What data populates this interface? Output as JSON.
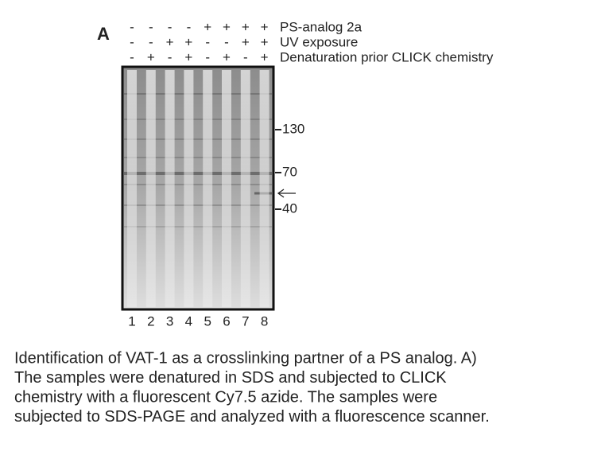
{
  "panel_label": "A",
  "conditions": [
    {
      "label": "PS-analog 2a",
      "signs": [
        "-",
        "-",
        "-",
        "-",
        "+",
        "+",
        "+",
        "+"
      ]
    },
    {
      "label": "UV exposure",
      "signs": [
        "-",
        "-",
        "+",
        "+",
        "-",
        "-",
        "+",
        "+"
      ]
    },
    {
      "label": "Denaturation prior CLICK chemistry",
      "signs": [
        "-",
        "+",
        "-",
        "+",
        "-",
        "+",
        "-",
        "+"
      ]
    }
  ],
  "lanes": [
    "1",
    "2",
    "3",
    "4",
    "5",
    "6",
    "7",
    "8"
  ],
  "markers": [
    "130",
    "70",
    "40"
  ],
  "caption": [
    "Identification of VAT-1 as a crosslinking partner of a PS analog. A)",
    "The samples were denatured in SDS and subjected to CLICK",
    "chemistry with a fluorescent Cy7.5 azide. The samples were",
    "subjected to SDS-PAGE and analyzed with a fluorescence scanner."
  ]
}
